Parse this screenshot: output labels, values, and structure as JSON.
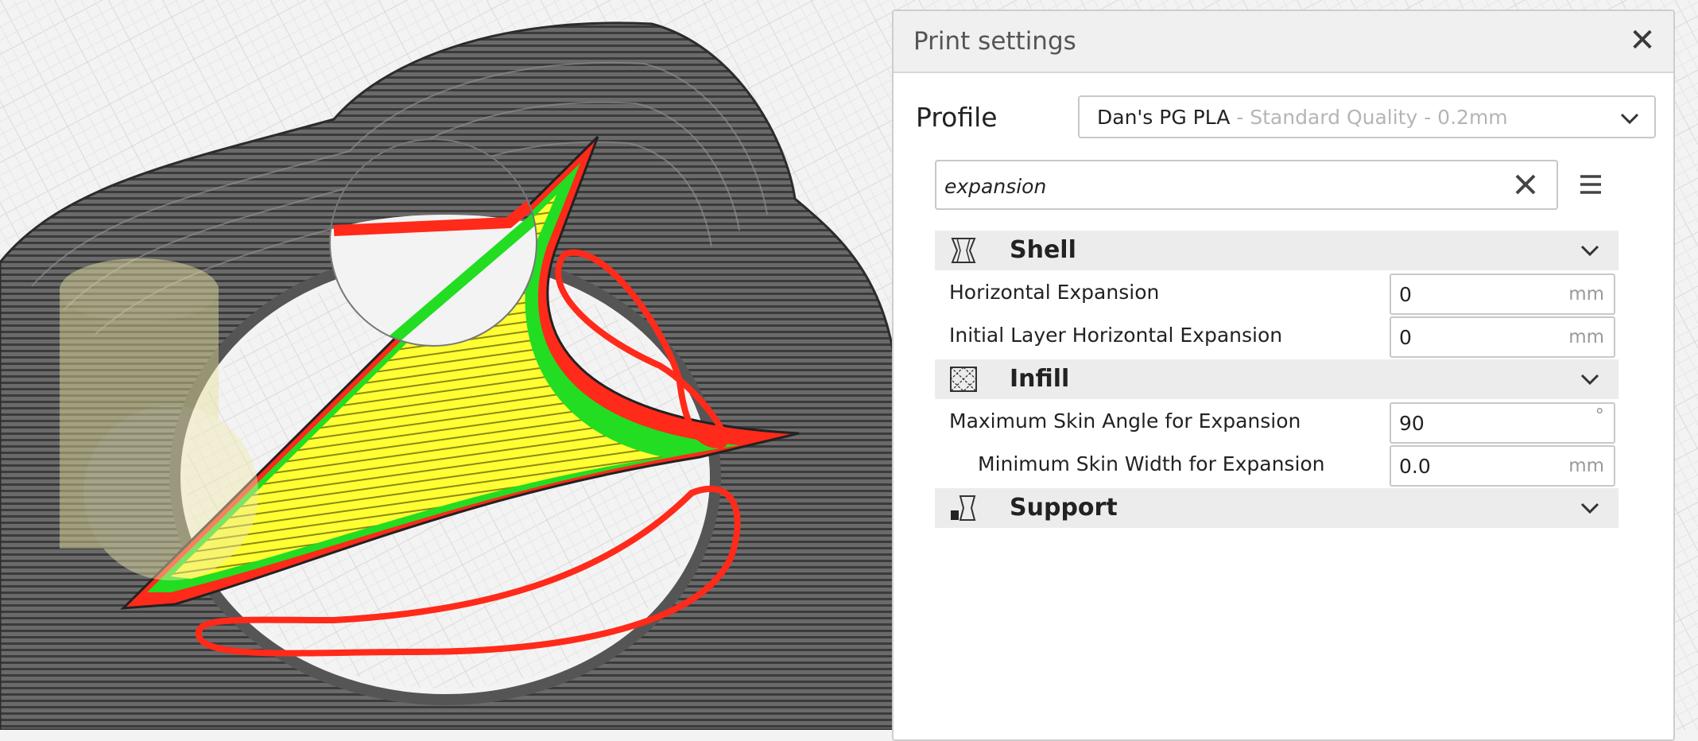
{
  "panel": {
    "title": "Print settings",
    "close_icon": "close-icon"
  },
  "profile": {
    "label": "Profile",
    "name": "Dan's PG PLA",
    "detail": " - Standard Quality - 0.2mm"
  },
  "search": {
    "value": "expansion"
  },
  "categories": [
    {
      "label": "Shell",
      "icon": "shell-icon",
      "settings": [
        {
          "label": "Horizontal Expansion",
          "value": "0",
          "unit": "mm"
        },
        {
          "label": "Initial Layer Horizontal Expansion",
          "value": "0",
          "unit": "mm"
        }
      ]
    },
    {
      "label": "Infill",
      "icon": "infill-icon",
      "settings": [
        {
          "label": "Maximum Skin Angle for Expansion",
          "value": "90",
          "unit": "°"
        },
        {
          "label": "Minimum Skin Width for Expansion",
          "value": "0.0",
          "unit": "mm"
        }
      ]
    },
    {
      "label": "Support",
      "icon": "support-icon",
      "settings": []
    }
  ],
  "colors": {
    "wall_outer": "#ff2a1a",
    "wall_inner": "#22dd22",
    "skin": "#ffff22",
    "skirt": "#555555",
    "build_plate": "#f3f3f3"
  }
}
